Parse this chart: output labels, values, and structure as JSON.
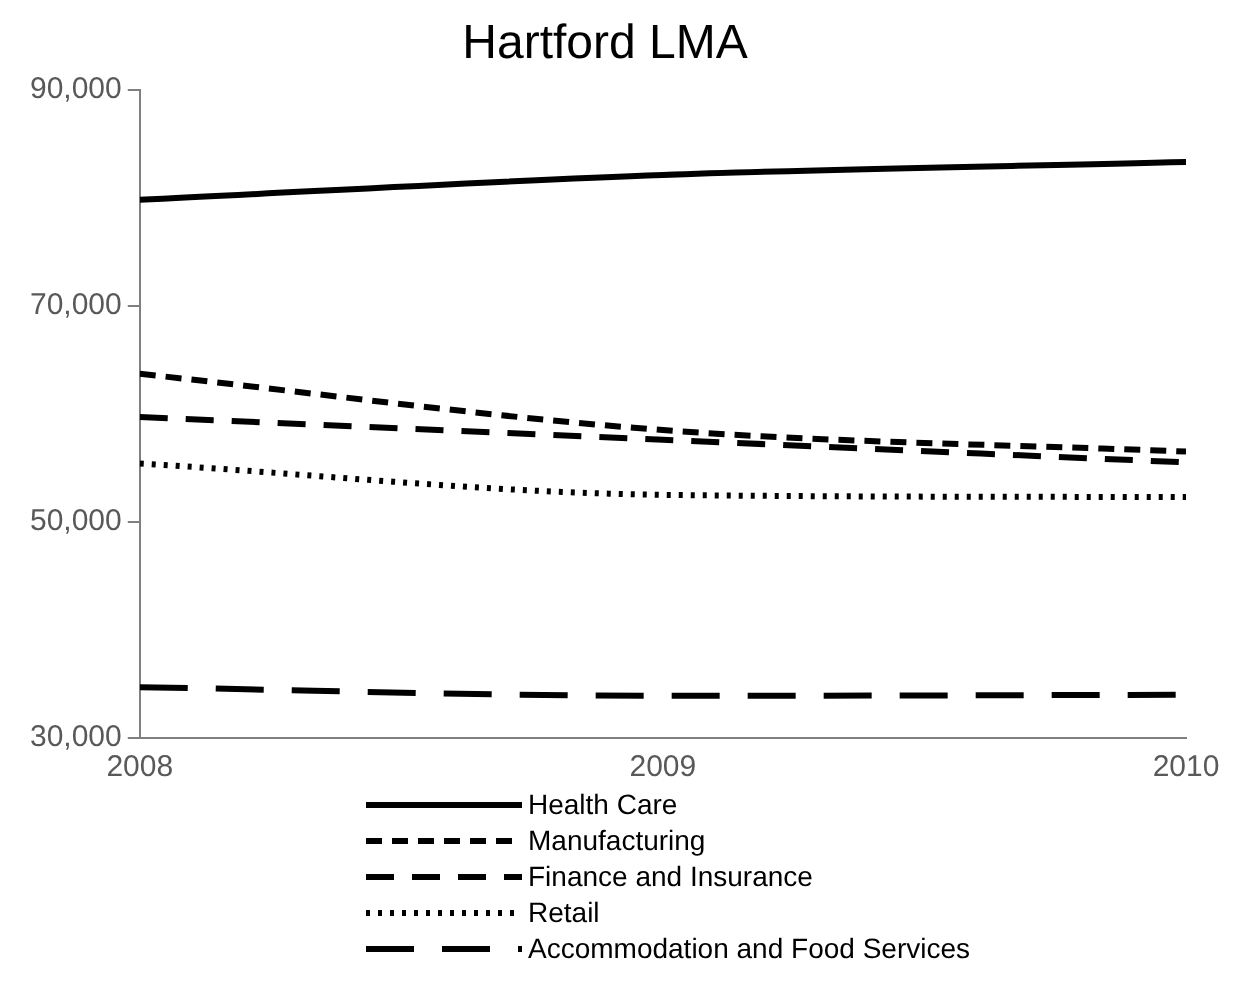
{
  "chart_data": {
    "type": "line",
    "title": "Hartford LMA",
    "x": [
      2008,
      2009,
      2010
    ],
    "xlim": [
      2008,
      2010
    ],
    "xticks": [
      {
        "value": 2008,
        "label": "2008"
      },
      {
        "value": 2009,
        "label": "2009"
      },
      {
        "value": 2010,
        "label": "2010"
      }
    ],
    "ylim": [
      30000,
      90000
    ],
    "yticks": [
      {
        "value": 30000,
        "label": "30,000"
      },
      {
        "value": 50000,
        "label": "50,000"
      },
      {
        "value": 70000,
        "label": "70,000"
      },
      {
        "value": 90000,
        "label": "90,000"
      }
    ],
    "grid": false,
    "legend": "bottom",
    "series": [
      {
        "name": "Health Care",
        "color": "#000000",
        "line_style": "solid",
        "values": [
          79800,
          82100,
          83300
        ]
      },
      {
        "name": "Manufacturing",
        "color": "#000000",
        "line_style": "dashed",
        "values": [
          63700,
          58500,
          56500
        ]
      },
      {
        "name": "Finance and Insurance",
        "color": "#000000",
        "line_style": "dashed",
        "values": [
          59700,
          57600,
          55500
        ]
      },
      {
        "name": "Retail",
        "color": "#000000",
        "line_style": "dotted",
        "values": [
          55400,
          52500,
          52300
        ]
      },
      {
        "name": "Accommodation and Food Services",
        "color": "#000000",
        "line_style": "dashed",
        "values": [
          34700,
          33900,
          34000
        ]
      }
    ]
  }
}
